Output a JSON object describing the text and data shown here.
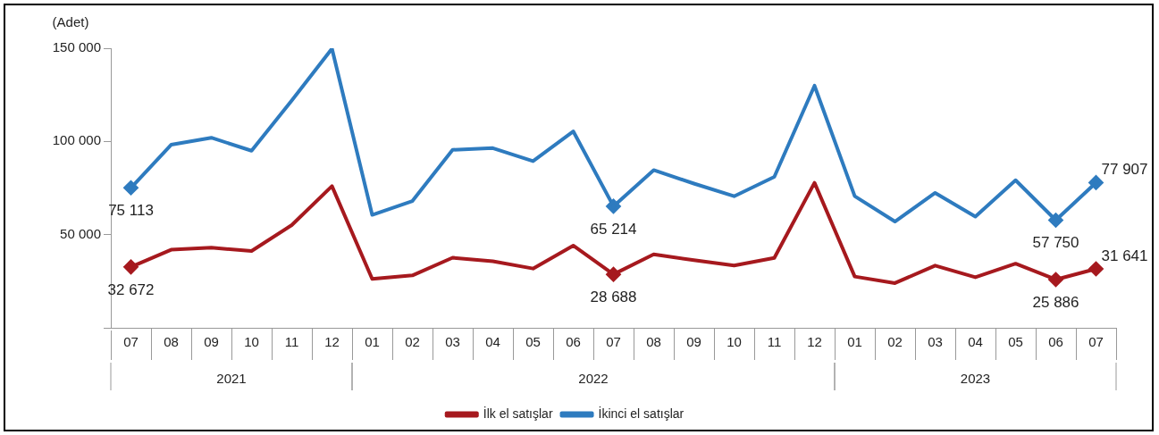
{
  "chart_data": {
    "type": "line",
    "ylabel": "(Adet)",
    "categories": [
      "07",
      "08",
      "09",
      "10",
      "11",
      "12",
      "01",
      "02",
      "03",
      "04",
      "05",
      "06",
      "07",
      "08",
      "09",
      "10",
      "11",
      "12",
      "01",
      "02",
      "03",
      "04",
      "05",
      "06",
      "07"
    ],
    "annotations": [
      "2021",
      "2022",
      "2023"
    ],
    "series": [
      {
        "name": "İlk el satışlar",
        "color": "#a6191e",
        "values": [
          32672,
          41900,
          43000,
          41200,
          55100,
          76000,
          26200,
          28100,
          37600,
          35700,
          31800,
          44100,
          28688,
          39400,
          36300,
          33400,
          37500,
          77800,
          27500,
          24000,
          33400,
          27100,
          34400,
          25886,
          31641
        ],
        "value_labels": [
          "32 672",
          null,
          null,
          null,
          null,
          null,
          null,
          null,
          null,
          null,
          null,
          null,
          "28 688",
          null,
          null,
          null,
          null,
          null,
          null,
          null,
          null,
          null,
          null,
          "25 886",
          "31 641"
        ]
      },
      {
        "name": "İkinci el satışlar",
        "color": "#2e7bbf",
        "values": [
          75113,
          98200,
          102000,
          95000,
          122000,
          149800,
          60600,
          68000,
          95500,
          96400,
          89400,
          105400,
          65214,
          84600,
          77400,
          70600,
          81000,
          129900,
          70600,
          57000,
          72400,
          59700,
          79200,
          57750,
          77907
        ],
        "value_labels": [
          "75 113",
          null,
          null,
          null,
          null,
          null,
          null,
          null,
          null,
          null,
          null,
          null,
          "65 214",
          null,
          null,
          null,
          null,
          null,
          null,
          null,
          null,
          null,
          null,
          "57 750",
          "77 907"
        ]
      }
    ],
    "ylim": [
      0,
      150000
    ],
    "yticks": [
      {
        "value": 0,
        "label": null
      },
      {
        "value": 50000,
        "label": "50 000"
      },
      {
        "value": 100000,
        "label": "100 000"
      },
      {
        "value": 150000,
        "label": "150 000"
      }
    ],
    "grid": false,
    "legend": "bottom",
    "line_style": "solid"
  }
}
